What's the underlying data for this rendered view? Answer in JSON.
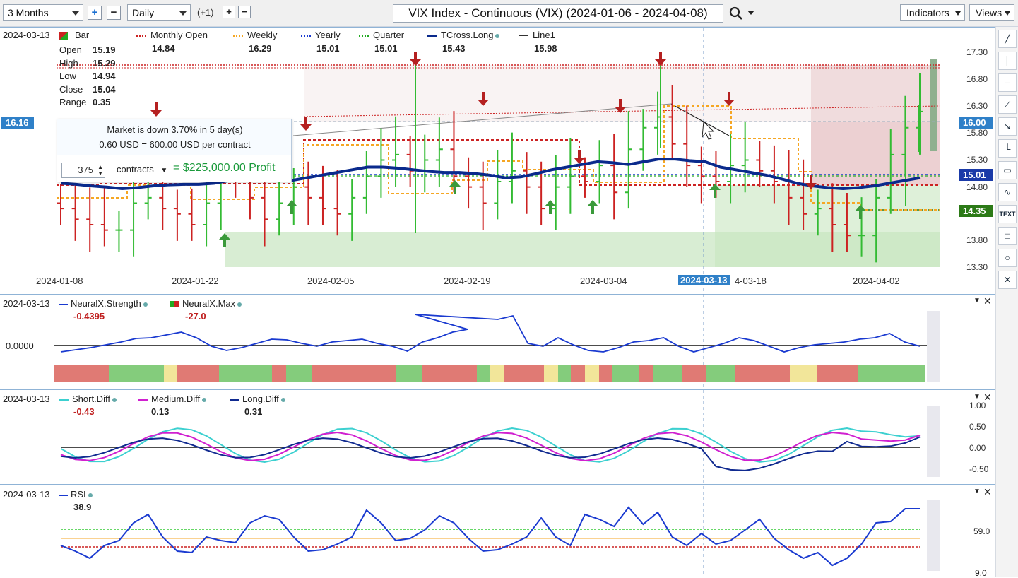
{
  "toolbar": {
    "period": "3 Months",
    "interval": "Daily",
    "offset": "(+1)",
    "title": "VIX Index - Continuous (VIX) (2024-01-06 - 2024-04-08)",
    "indicators": "Indicators",
    "views": "Views",
    "plus": "+",
    "minus": "−"
  },
  "main_panel": {
    "date": "2024-03-13",
    "legend": [
      {
        "name": "Bar",
        "value": ""
      },
      {
        "name": "Monthly Open",
        "value": "14.84"
      },
      {
        "name": "Weekly",
        "value": "16.29"
      },
      {
        "name": "Yearly",
        "value": "15.01"
      },
      {
        "name": "Quarter",
        "value": "15.01"
      },
      {
        "name": "TCross.Long",
        "value": "15.43"
      },
      {
        "name": "Line1",
        "value": "15.98"
      }
    ],
    "ohlc": [
      {
        "k": "Open",
        "v": "15.19"
      },
      {
        "k": "High",
        "v": "15.29"
      },
      {
        "k": "Low",
        "v": "14.94"
      },
      {
        "k": "Close",
        "v": "15.04"
      },
      {
        "k": "Range",
        "v": "0.35"
      }
    ],
    "left_tag": "16.16",
    "right_tags": {
      "a": "16.00",
      "b": "15.01",
      "c": "14.35"
    },
    "y_labels": [
      "17.30",
      "16.80",
      "16.30",
      "15.80",
      "15.30",
      "14.80",
      "13.80",
      "13.30"
    ],
    "x_labels": [
      "2024-01-08",
      "2024-01-22",
      "2024-02-05",
      "2024-02-19",
      "2024-03-04",
      "2024-03-13",
      "4-03-18",
      "2024-04-02"
    ],
    "popup": {
      "line1": "Market is down 3.70% in 5 day(s)",
      "line2": "0.60 USD = 600.00 USD per contract",
      "qty": "375",
      "unit": "contracts",
      "profit": "= $225,000.00 Profit"
    }
  },
  "neural_panel": {
    "date": "2024-03-13",
    "strength_label": "NeuralX.Strength",
    "strength_value": "-0.4395",
    "max_label": "NeuralX.Max",
    "max_value": "-27.0",
    "zero_label": "0.0000"
  },
  "diff_panel": {
    "date": "2024-03-13",
    "short_label": "Short.Diff",
    "short_value": "-0.43",
    "medium_label": "Medium.Diff",
    "medium_value": "0.13",
    "long_label": "Long.Diff",
    "long_value": "0.31",
    "y_labels": [
      "1.00",
      "0.50",
      "0.00",
      "-0.50"
    ]
  },
  "rsi_panel": {
    "date": "2024-03-13",
    "label": "RSI",
    "value": "38.9",
    "y_labels": [
      "59.0",
      "9.0"
    ]
  },
  "tools": [
    "line",
    "vline",
    "hline",
    "ray",
    "arrow",
    "fib",
    "comment",
    "curve",
    "text",
    "rect",
    "circle",
    "delete"
  ],
  "colors": {
    "up": "#33bb33",
    "down": "#cc2222",
    "tcross": "#0a2a8c",
    "weekly": "#f5a623",
    "accent": "#2f80c8"
  }
}
